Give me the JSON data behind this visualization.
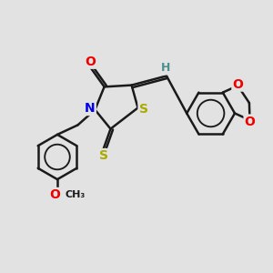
{
  "background_color": "#e2e2e2",
  "atom_colors": {
    "C": "#1a1a1a",
    "N": "#0000ee",
    "O": "#ee0000",
    "S": "#aaaa00",
    "H": "#4a9090"
  },
  "bond_color": "#1a1a1a",
  "bond_width": 1.8,
  "font_size_atom": 10,
  "font_size_small": 8,
  "xlim": [
    0,
    10
  ],
  "ylim": [
    0,
    10
  ]
}
